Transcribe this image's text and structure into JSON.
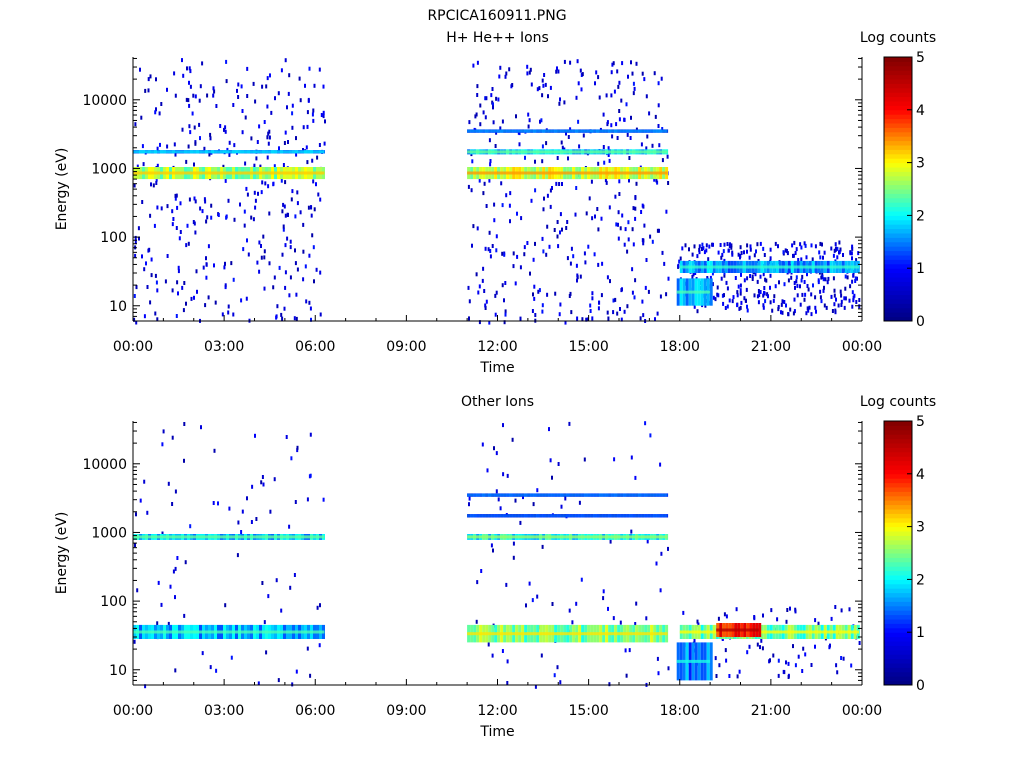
{
  "page_title": "RPCICA160911.PNG",
  "colormap": [
    "#000080",
    "#0000ff",
    "#00ffff",
    "#ffff00",
    "#ff0000",
    "#800000"
  ],
  "chart_data": [
    {
      "type": "heatmap",
      "title": "H+ He++ Ions",
      "xlabel": "Time",
      "ylabel": "Energy (eV)",
      "y_scale": "log",
      "xlim": [
        "00:00",
        "00:00"
      ],
      "xlim_hours": [
        0,
        24
      ],
      "ylim": [
        6,
        42000
      ],
      "x_ticks": [
        "00:00",
        "03:00",
        "06:00",
        "09:00",
        "12:00",
        "15:00",
        "18:00",
        "21:00",
        "00:00"
      ],
      "y_ticks": [
        {
          "value": 10,
          "label": "10"
        },
        {
          "value": 100,
          "label": "100"
        },
        {
          "value": 1000,
          "label": "1000"
        },
        {
          "value": 10000,
          "label": "10000"
        }
      ],
      "colorbar": {
        "label": "Log counts",
        "range": [
          0,
          5
        ],
        "ticks": [
          "0",
          "1",
          "2",
          "3",
          "4",
          "5"
        ]
      },
      "data_gaps_hours": [
        [
          6.3,
          11.0
        ]
      ],
      "features": [
        {
          "t_start": 0.0,
          "t_end": 6.3,
          "e_low": 700,
          "e_high": 1050,
          "level": 2.6
        },
        {
          "t_start": 11.0,
          "t_end": 17.6,
          "e_low": 700,
          "e_high": 1050,
          "level": 2.8
        },
        {
          "t_start": 0.0,
          "t_end": 6.3,
          "e_low": 1650,
          "e_high": 1850,
          "level": 1.3
        },
        {
          "t_start": 11.0,
          "t_end": 17.6,
          "e_low": 1600,
          "e_high": 1900,
          "level": 1.8
        },
        {
          "t_start": 11.0,
          "t_end": 17.6,
          "e_low": 3300,
          "e_high": 3700,
          "level": 1.0
        },
        {
          "t_start": 18.0,
          "t_end": 23.9,
          "e_low": 30,
          "e_high": 45,
          "level": 1.6
        },
        {
          "t_start": 17.9,
          "t_end": 19.0,
          "e_low": 10,
          "e_high": 25,
          "level": 1.7
        }
      ],
      "background_hours": [
        [
          0.0,
          6.3
        ],
        [
          11.0,
          17.6
        ],
        [
          17.9,
          23.9
        ]
      ],
      "background_energy": [
        6,
        42000
      ]
    },
    {
      "type": "heatmap",
      "title": "Other Ions",
      "xlabel": "Time",
      "ylabel": "Energy (eV)",
      "y_scale": "log",
      "xlim": [
        "00:00",
        "00:00"
      ],
      "xlim_hours": [
        0,
        24
      ],
      "ylim": [
        6,
        42000
      ],
      "x_ticks": [
        "00:00",
        "03:00",
        "06:00",
        "09:00",
        "12:00",
        "15:00",
        "18:00",
        "21:00",
        "00:00"
      ],
      "y_ticks": [
        {
          "value": 10,
          "label": "10"
        },
        {
          "value": 100,
          "label": "100"
        },
        {
          "value": 1000,
          "label": "1000"
        },
        {
          "value": 10000,
          "label": "10000"
        }
      ],
      "colorbar": {
        "label": "Log counts",
        "range": [
          0,
          5
        ],
        "ticks": [
          "0",
          "1",
          "2",
          "3",
          "4",
          "5"
        ]
      },
      "data_gaps_hours": [
        [
          6.3,
          11.0
        ]
      ],
      "features": [
        {
          "t_start": 0.0,
          "t_end": 6.3,
          "e_low": 780,
          "e_high": 950,
          "level": 1.8
        },
        {
          "t_start": 11.0,
          "t_end": 17.6,
          "e_low": 780,
          "e_high": 950,
          "level": 2.0
        },
        {
          "t_start": 11.0,
          "t_end": 17.6,
          "e_low": 3300,
          "e_high": 3700,
          "level": 0.9
        },
        {
          "t_start": 11.0,
          "t_end": 17.6,
          "e_low": 1650,
          "e_high": 1850,
          "level": 0.8
        },
        {
          "t_start": 0.0,
          "t_end": 6.3,
          "e_low": 28,
          "e_high": 45,
          "level": 1.7
        },
        {
          "t_start": 11.0,
          "t_end": 17.6,
          "e_low": 25,
          "e_high": 45,
          "level": 2.5
        },
        {
          "t_start": 18.0,
          "t_end": 23.9,
          "e_low": 28,
          "e_high": 45,
          "level": 2.4
        },
        {
          "t_start": 19.2,
          "t_end": 20.6,
          "e_low": 30,
          "e_high": 48,
          "level": 4.0
        },
        {
          "t_start": 17.9,
          "t_end": 19.0,
          "e_low": 7,
          "e_high": 25,
          "level": 1.5
        }
      ],
      "background_hours": [
        [
          0.0,
          6.3
        ],
        [
          11.0,
          17.6
        ],
        [
          17.9,
          23.9
        ]
      ],
      "background_energy": [
        6,
        42000
      ]
    }
  ]
}
